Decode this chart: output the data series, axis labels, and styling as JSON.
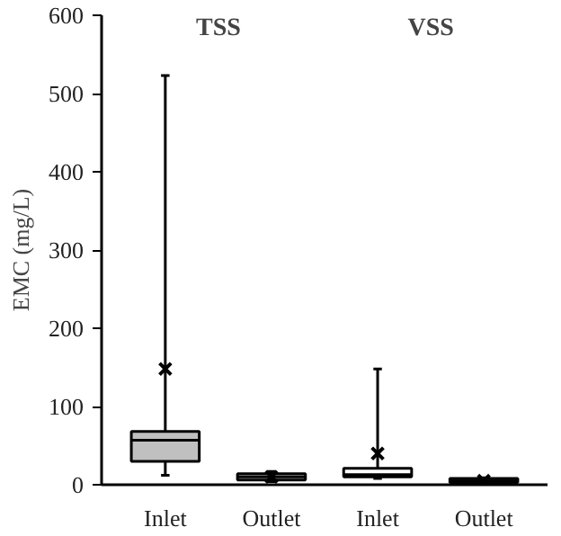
{
  "chart_data": {
    "type": "box",
    "ylabel": "EMC (mg/L)",
    "categories": [
      "Inlet",
      "Outlet",
      "Inlet",
      "Outlet"
    ],
    "annotations": [
      "TSS",
      "VSS"
    ],
    "ylim": [
      0,
      600
    ],
    "yticks": [
      0,
      100,
      200,
      300,
      400,
      500,
      600
    ],
    "grid": false,
    "marker": "cross",
    "colors": [
      "#c0c0c0",
      "#c0c0c0",
      "#ffffff",
      "#404040"
    ],
    "boxes": [
      {
        "low": 12,
        "q1": 30,
        "median": 57,
        "q3": 68,
        "high": 523,
        "mean": 148
      },
      {
        "low": 4,
        "q1": 6,
        "median": 10,
        "q3": 14,
        "high": 17,
        "mean": 10
      },
      {
        "low": 8,
        "q1": 10,
        "median": 13,
        "q3": 21,
        "high": 148,
        "mean": 40
      },
      {
        "low": 2,
        "q1": 3,
        "median": 5,
        "q3": 8,
        "high": 9,
        "mean": 5
      }
    ]
  }
}
